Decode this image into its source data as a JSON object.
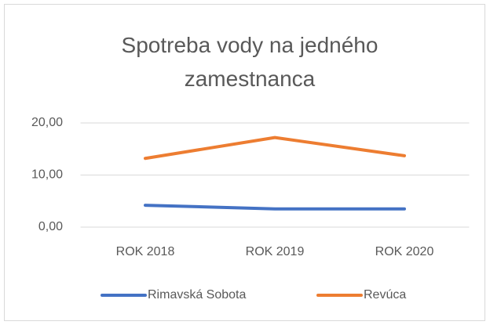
{
  "chart_data": {
    "type": "line",
    "title": "Spotreba vody na jedného zamestnanca",
    "categories": [
      "ROK 2018",
      "ROK 2019",
      "ROK 2020"
    ],
    "series": [
      {
        "name": "Rimavská Sobota",
        "color": "#4472c4",
        "values": [
          4.2,
          3.5,
          3.5
        ]
      },
      {
        "name": "Revúca",
        "color": "#ed7d31",
        "values": [
          13.2,
          17.2,
          13.7
        ]
      }
    ],
    "ylim": [
      0,
      20
    ],
    "yticks": [
      {
        "value": 0,
        "label": "0,00"
      },
      {
        "value": 10,
        "label": "10,00"
      },
      {
        "value": 20,
        "label": "20,00"
      }
    ],
    "grid": true,
    "legend": "bottom"
  }
}
